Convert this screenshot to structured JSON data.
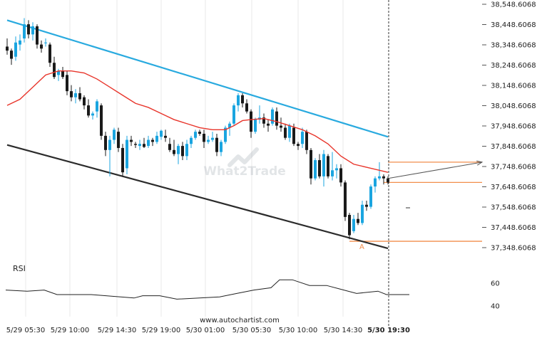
{
  "chart_data": {
    "type": "candlestick",
    "price_axis": {
      "ticks": [
        38548.6068,
        38448.6068,
        38348.6068,
        38248.6068,
        38148.6068,
        38048.6068,
        37948.6068,
        37848.6068,
        37748.6068,
        37648.6068,
        37548.6068,
        37448.6068,
        37348.6068
      ],
      "tick_labels": [
        "38,548.6068",
        "38,448.6068",
        "38,348.6068",
        "38,248.6068",
        "38,148.6068",
        "38,048.6068",
        "37,948.6068",
        "37,848.6068",
        "37,748.6068",
        "37,648.6068",
        "37,548.6068",
        "37,448.6068",
        "37,348.6068"
      ],
      "range": [
        37320,
        38565
      ]
    },
    "time_axis": {
      "labels": [
        "5/29 05:30",
        "5/29 10:00",
        "5/29 14:30",
        "5/29 19:00",
        "5/30 01:00",
        "5/30 05:30",
        "5/30 10:00",
        "5/30 14:30",
        "5/30 19:30"
      ],
      "current_label": "5/30 19:30"
    },
    "candles": [
      [
        38340,
        38380,
        38300,
        38320
      ],
      [
        38320,
        38330,
        38250,
        38280
      ],
      [
        38290,
        38390,
        38270,
        38360
      ],
      [
        38350,
        38400,
        38320,
        38370
      ],
      [
        38380,
        38480,
        38360,
        38450
      ],
      [
        38450,
        38470,
        38380,
        38400
      ],
      [
        38400,
        38460,
        38370,
        38440
      ],
      [
        38440,
        38450,
        38330,
        38350
      ],
      [
        38350,
        38370,
        38310,
        38330
      ],
      [
        38360,
        38380,
        38340,
        38360
      ],
      [
        38350,
        38360,
        38240,
        38260
      ],
      [
        38260,
        38290,
        38180,
        38190
      ],
      [
        38200,
        38230,
        38170,
        38220
      ],
      [
        38220,
        38240,
        38180,
        38190
      ],
      [
        38200,
        38220,
        38100,
        38120
      ],
      [
        38120,
        38150,
        38070,
        38090
      ],
      [
        38090,
        38130,
        38060,
        38110
      ],
      [
        38110,
        38140,
        38070,
        38080
      ],
      [
        38090,
        38100,
        38030,
        38050
      ],
      [
        38050,
        38080,
        37990,
        38000
      ],
      [
        38000,
        38020,
        37980,
        38010
      ],
      [
        38020,
        38080,
        37990,
        38070
      ],
      [
        38050,
        38060,
        37880,
        37900
      ],
      [
        37900,
        37920,
        37800,
        37830
      ],
      [
        37830,
        37900,
        37700,
        37880
      ],
      [
        37880,
        37940,
        37860,
        37930
      ],
      [
        37920,
        37940,
        37820,
        37840
      ],
      [
        37840,
        37860,
        37700,
        37720
      ],
      [
        37740,
        37900,
        37710,
        37880
      ],
      [
        37880,
        37900,
        37850,
        37870
      ],
      [
        37860,
        37870,
        37840,
        37855
      ],
      [
        37850,
        37880,
        37830,
        37860
      ],
      [
        37860,
        37890,
        37840,
        37845
      ],
      [
        37850,
        37900,
        37840,
        37880
      ],
      [
        37880,
        37890,
        37850,
        37870
      ],
      [
        37870,
        37920,
        37860,
        37900
      ],
      [
        37895,
        37930,
        37880,
        37925
      ],
      [
        37900,
        37930,
        37870,
        37890
      ],
      [
        37860,
        37890,
        37820,
        37830
      ],
      [
        37830,
        37880,
        37800,
        37810
      ],
      [
        37810,
        37860,
        37760,
        37850
      ],
      [
        37850,
        37870,
        37780,
        37800
      ],
      [
        37800,
        37880,
        37780,
        37860
      ],
      [
        37860,
        37900,
        37840,
        37890
      ],
      [
        37890,
        37930,
        37880,
        37920
      ],
      [
        37920,
        37930,
        37900,
        37910
      ],
      [
        37910,
        37930,
        37840,
        37870
      ],
      [
        37870,
        37900,
        37860,
        37880
      ],
      [
        37880,
        37920,
        37870,
        37890
      ],
      [
        37890,
        37910,
        37800,
        37820
      ],
      [
        37820,
        37880,
        37800,
        37870
      ],
      [
        37870,
        37950,
        37860,
        37940
      ],
      [
        37940,
        37970,
        37900,
        37960
      ],
      [
        37960,
        38060,
        37950,
        38050
      ],
      [
        38050,
        38110,
        38020,
        38100
      ],
      [
        38100,
        38110,
        38040,
        38060
      ],
      [
        38060,
        38080,
        38010,
        38020
      ],
      [
        38020,
        38030,
        37890,
        37920
      ],
      [
        37920,
        37990,
        37910,
        37980
      ],
      [
        37980,
        38050,
        37960,
        37990
      ],
      [
        37990,
        38010,
        37940,
        37960
      ],
      [
        37960,
        37980,
        37920,
        37950
      ],
      [
        37960,
        38040,
        37950,
        38030
      ],
      [
        38020,
        38040,
        37930,
        37950
      ],
      [
        37950,
        37990,
        37920,
        37940
      ],
      [
        37940,
        37960,
        37880,
        37890
      ],
      [
        37890,
        37960,
        37870,
        37950
      ],
      [
        37940,
        37960,
        37850,
        37860
      ],
      [
        37860,
        37870,
        37830,
        37850
      ],
      [
        37860,
        37940,
        37840,
        37920
      ],
      [
        37920,
        37930,
        37810,
        37830
      ],
      [
        37830,
        37840,
        37660,
        37690
      ],
      [
        37690,
        37790,
        37680,
        37780
      ],
      [
        37780,
        37810,
        37690,
        37700
      ],
      [
        37700,
        37830,
        37650,
        37810
      ],
      [
        37800,
        37810,
        37690,
        37700
      ],
      [
        37700,
        37820,
        37680,
        37730
      ],
      [
        37730,
        37760,
        37690,
        37740
      ],
      [
        37740,
        37760,
        37650,
        37670
      ],
      [
        37670,
        37680,
        37480,
        37500
      ],
      [
        37510,
        37520,
        37390,
        37410
      ],
      [
        37430,
        37510,
        37420,
        37490
      ],
      [
        37490,
        37520,
        37460,
        37470
      ],
      [
        37470,
        37580,
        37460,
        37560
      ],
      [
        37560,
        37580,
        37530,
        37550
      ],
      [
        37550,
        37660,
        37540,
        37650
      ],
      [
        37650,
        37700,
        37620,
        37690
      ],
      [
        37690,
        37770,
        37680,
        37700
      ],
      [
        37700,
        37710,
        37660,
        37690
      ],
      [
        37690,
        37700,
        37660,
        37670
      ]
    ],
    "moving_average": [
      [
        0,
        38050
      ],
      [
        3,
        38080
      ],
      [
        6,
        38140
      ],
      [
        9,
        38200
      ],
      [
        12,
        38220
      ],
      [
        15,
        38220
      ],
      [
        18,
        38210
      ],
      [
        21,
        38180
      ],
      [
        24,
        38140
      ],
      [
        27,
        38100
      ],
      [
        30,
        38060
      ],
      [
        33,
        38040
      ],
      [
        36,
        38010
      ],
      [
        39,
        37980
      ],
      [
        42,
        37960
      ],
      [
        45,
        37940
      ],
      [
        48,
        37930
      ],
      [
        51,
        37930
      ],
      [
        53,
        37950
      ],
      [
        55,
        37975
      ],
      [
        57,
        37980
      ],
      [
        60,
        37985
      ],
      [
        63,
        37970
      ],
      [
        66,
        37950
      ],
      [
        69,
        37930
      ],
      [
        72,
        37900
      ],
      [
        75,
        37860
      ],
      [
        78,
        37800
      ],
      [
        81,
        37760
      ],
      [
        84,
        37745
      ],
      [
        87,
        37730
      ],
      [
        89,
        37720
      ]
    ],
    "channel_upper": [
      [
        0,
        38470
      ],
      [
        89,
        37895
      ]
    ],
    "channel_lower": [
      [
        0,
        37855
      ],
      [
        89,
        37345
      ]
    ],
    "projection_arrow": [
      [
        89,
        37690
      ],
      [
        111,
        37770
      ]
    ],
    "levels": [
      {
        "from": 89,
        "to": 111,
        "value": 37770
      },
      {
        "from": 88,
        "to": 111,
        "value": 37670
      },
      {
        "from": 80,
        "to": 111,
        "value": 37380
      }
    ],
    "marker": {
      "label": "A",
      "index": 83,
      "value": 37355
    },
    "rsi": {
      "label": "RSI",
      "ticks": [
        60,
        40
      ],
      "range": [
        33,
        72
      ],
      "values": [
        [
          0,
          54
        ],
        [
          5,
          53
        ],
        [
          9,
          54
        ],
        [
          12,
          50
        ],
        [
          20,
          50
        ],
        [
          30,
          47
        ],
        [
          32,
          49
        ],
        [
          36,
          49
        ],
        [
          40,
          46
        ],
        [
          50,
          48
        ],
        [
          54,
          51
        ],
        [
          58,
          54
        ],
        [
          62,
          56
        ],
        [
          64,
          63
        ],
        [
          67,
          63
        ],
        [
          71,
          58
        ],
        [
          75,
          58
        ],
        [
          78,
          55
        ],
        [
          82,
          51
        ],
        [
          87,
          53
        ],
        [
          89,
          50
        ]
      ]
    },
    "footer_text": "www.autochartist.com",
    "watermark": "What2Trade",
    "colors": {
      "up": "#1aa5e0",
      "down": "#1a1a1a",
      "channel_upper": "#29aadf",
      "channel_lower": "#2b2b2b",
      "moving_average": "#e8352b",
      "levels": "#f28e4c",
      "marker": "#f28e4c",
      "projection": "#555555",
      "rsi": "#222222"
    }
  }
}
